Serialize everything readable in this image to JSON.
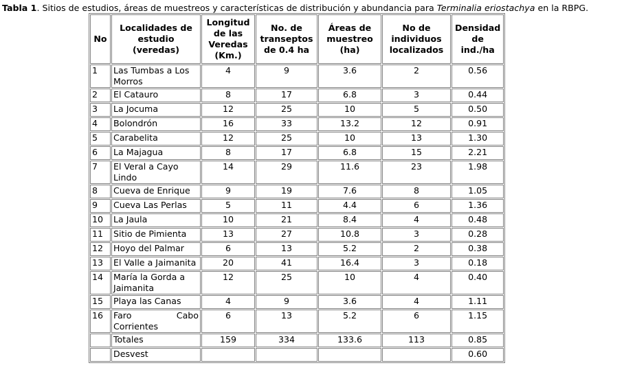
{
  "caption": {
    "label": "Tabla 1",
    "text_before": ". Sitios de estudios, áreas de muestreos y características de distribución y abundancia para ",
    "species": "Terminalia eriostachya",
    "text_after": " en la RBPG."
  },
  "headers": [
    "No",
    "Localidades de estudio (veredas)",
    "Longitud de las Veredas (Km.)",
    "No. de transeptos de 0.4 ha",
    "Áreas de muestreo (ha)",
    "No de individuos localizados",
    "Densidad de ind./ha"
  ],
  "rows": [
    {
      "no": "1",
      "loc": "Las Tumbas a Los Morros",
      "len": "4",
      "tr": "9",
      "area": "3.6",
      "ind": "2",
      "den": "0.56",
      "wrap": true
    },
    {
      "no": "2",
      "loc": "El Catauro",
      "len": "8",
      "tr": "17",
      "area": "6.8",
      "ind": "3",
      "den": "0.44"
    },
    {
      "no": "3",
      "loc": "La Jocuma",
      "len": "12",
      "tr": "25",
      "area": "10",
      "ind": "5",
      "den": "0.50"
    },
    {
      "no": "4",
      "loc": "Bolondrón",
      "len": "16",
      "tr": "33",
      "area": "13.2",
      "ind": "12",
      "den": "0.91"
    },
    {
      "no": "5",
      "loc": "Carabelita",
      "len": "12",
      "tr": "25",
      "area": "10",
      "ind": "13",
      "den": "1.30"
    },
    {
      "no": "6",
      "loc": "La Majagua",
      "len": "8",
      "tr": "17",
      "area": "6.8",
      "ind": "15",
      "den": "2.21"
    },
    {
      "no": "7",
      "loc": "El Veral a Cayo Lindo",
      "len": "14",
      "tr": "29",
      "area": "11.6",
      "ind": "23",
      "den": "1.98",
      "wrap": true
    },
    {
      "no": "8",
      "loc": "Cueva de Enrique",
      "len": "9",
      "tr": "19",
      "area": "7.6",
      "ind": "8",
      "den": "1.05"
    },
    {
      "no": "9",
      "loc": "Cueva Las Perlas",
      "len": "5",
      "tr": "11",
      "area": "4.4",
      "ind": "6",
      "den": "1.36"
    },
    {
      "no": "10",
      "loc": "La Jaula",
      "len": "10",
      "tr": "21",
      "area": "8.4",
      "ind": "4",
      "den": "0.48"
    },
    {
      "no": "11",
      "loc": "Sitio de Pimienta",
      "len": "13",
      "tr": "27",
      "area": "10.8",
      "ind": "3",
      "den": "0.28"
    },
    {
      "no": "12",
      "loc": "Hoyo del Palmar",
      "len": "6",
      "tr": "13",
      "area": "5.2",
      "ind": "2",
      "den": "0.38"
    },
    {
      "no": "13",
      "loc": "El Valle a Jaimanita",
      "len": "20",
      "tr": "41",
      "area": "16.4",
      "ind": "3",
      "den": "0.18"
    },
    {
      "no": "14",
      "loc": "María la Gorda a Jaimanita",
      "len": "12",
      "tr": "25",
      "area": "10",
      "ind": "4",
      "den": "0.40",
      "wrap": true
    },
    {
      "no": "15",
      "loc": "Playa las Canas",
      "len": "4",
      "tr": "9",
      "area": "3.6",
      "ind": "4",
      "den": "1.11"
    },
    {
      "no": "16",
      "loc": "Faro Cabo Corrientes",
      "len": "6",
      "tr": "13",
      "area": "5.2",
      "ind": "6",
      "den": "1.15",
      "wrap": true
    }
  ],
  "totals": {
    "label": "Totales",
    "len": "159",
    "tr": "334",
    "area": "133.6",
    "ind": "113",
    "den": "0.85"
  },
  "desvest": {
    "label": "Desvest",
    "den": "0.60"
  }
}
